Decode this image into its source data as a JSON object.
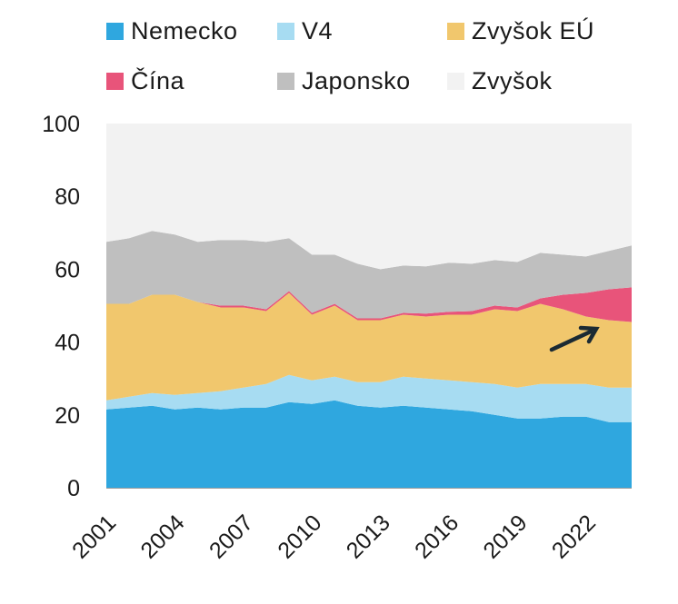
{
  "colors": {
    "Nemecko": "#2fa7df",
    "V4": "#a7dcf2",
    "Zvyšok EÚ": "#f1c76d",
    "Čína": "#e8547a",
    "Japonsko": "#bfbfbf",
    "Zvyšok": "#f2f2f2",
    "arrow": "#1b2a33"
  },
  "chart_data": {
    "type": "area",
    "stacked": true,
    "x": [
      2001,
      2002,
      2003,
      2004,
      2005,
      2006,
      2007,
      2008,
      2009,
      2010,
      2011,
      2012,
      2013,
      2014,
      2015,
      2016,
      2017,
      2018,
      2019,
      2020,
      2021,
      2022,
      2023,
      2024
    ],
    "x_tick_labels": [
      "2001",
      "2004",
      "2007",
      "2010",
      "2013",
      "2016",
      "2019",
      "2022"
    ],
    "y_ticks": [
      0,
      20,
      40,
      60,
      80,
      100
    ],
    "ylim": [
      0,
      100
    ],
    "legend_placement": "top",
    "series": [
      {
        "name": "Nemecko",
        "values": [
          21.5,
          22,
          22.5,
          21.5,
          22,
          21.5,
          22,
          22,
          23.5,
          23,
          24,
          22.5,
          22,
          22.5,
          22,
          21.5,
          21,
          20,
          19,
          19,
          19.5,
          19.5,
          18,
          18
        ]
      },
      {
        "name": "V4",
        "values": [
          2.5,
          3,
          3.5,
          4,
          4,
          5,
          5.5,
          6.5,
          7.5,
          6.5,
          6.5,
          6.5,
          7,
          8,
          8,
          8,
          8,
          8.5,
          8.5,
          9.5,
          9,
          9,
          9.5,
          9.5
        ]
      },
      {
        "name": "Zvyšok EÚ",
        "values": [
          26.5,
          25.5,
          27,
          27.5,
          25,
          23,
          22,
          20,
          22.5,
          18,
          19.5,
          17,
          17,
          17,
          17,
          18,
          18.5,
          20.5,
          21,
          22,
          20.5,
          18.5,
          18.5,
          18
        ]
      },
      {
        "name": "Čína",
        "values": [
          0,
          0,
          0,
          0,
          0,
          0.5,
          0.5,
          0.5,
          0.5,
          0.5,
          0.5,
          0.5,
          0.5,
          0.5,
          0.8,
          0.8,
          1,
          1,
          1,
          1.5,
          4,
          6.5,
          8.5,
          9.5
        ]
      },
      {
        "name": "Japonsko",
        "values": [
          17,
          18,
          17.5,
          16.5,
          16.5,
          18,
          18,
          18.5,
          14.5,
          16,
          13.5,
          15,
          13.5,
          13,
          13,
          13.5,
          13,
          12.5,
          12.5,
          12.5,
          11,
          10,
          10.5,
          11.5
        ]
      },
      {
        "name": "Zvyšok",
        "values": [
          32.5,
          31.5,
          29.5,
          30.5,
          32.5,
          32,
          32,
          32.5,
          31.5,
          36,
          36,
          38.5,
          40,
          39,
          39.2,
          38.2,
          38.5,
          37.5,
          38,
          35.5,
          36,
          36.5,
          35,
          33.5
        ]
      }
    ]
  }
}
